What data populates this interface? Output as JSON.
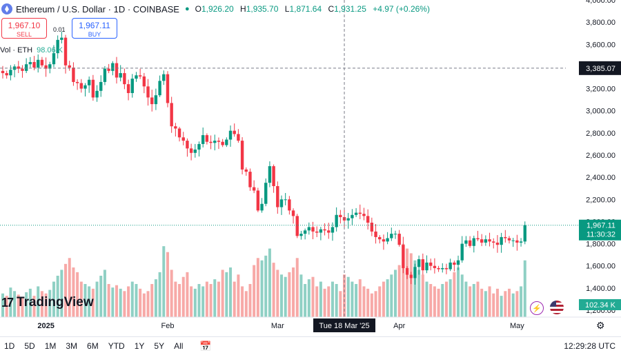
{
  "header": {
    "title": "Ethereum / U.S. Dollar · 1D · COINBASE",
    "open_label": "O",
    "open": "1,926.20",
    "high_label": "H",
    "high": "1,935.70",
    "low_label": "L",
    "low": "1,871.64",
    "close_label": "C",
    "close": "1,931.25",
    "change": "+4.97 (+0.26%)"
  },
  "trade": {
    "sell_price": "1,967.10",
    "sell_label": "SELL",
    "buy_price": "1,967.11",
    "buy_label": "BUY",
    "spread": "0.01"
  },
  "volume": {
    "label": "Vol · ETH",
    "value": "98.06 K"
  },
  "logo": {
    "text": "TradingView"
  },
  "colors": {
    "up": "#089981",
    "down": "#f23645",
    "vol_up": "#8fd0c4",
    "vol_down": "#f7a9a7",
    "crosshair": "#131722"
  },
  "chart_data": {
    "type": "candlestick",
    "title": "Ethereum / U.S. Dollar · 1D · COINBASE",
    "ylim": [
      1200,
      4000
    ],
    "y_ticks": [
      "4,000.00",
      "3,800.00",
      "3,600.00",
      "3,400.00",
      "3,200.00",
      "3,000.00",
      "2,800.00",
      "2,600.00",
      "2,400.00",
      "2,200.00",
      "2,000.00",
      "1,800.00",
      "1,600.00",
      "1,400.00",
      "1,200.00"
    ],
    "y_tick_values": [
      4000,
      3800,
      3600,
      3400,
      3200,
      3000,
      2800,
      2600,
      2400,
      2200,
      2000,
      1800,
      1600,
      1400,
      1200
    ],
    "x_ticks": [
      {
        "label": "2025",
        "index": 11
      },
      {
        "label": "Feb",
        "index": 42
      },
      {
        "label": "Mar",
        "index": 70
      },
      {
        "label": "Apr",
        "index": 101
      },
      {
        "label": "May",
        "index": 131
      }
    ],
    "crosshair": {
      "date_label": "Tue 18 Mar '25",
      "index": 87,
      "price_label": "3,385.07",
      "price": 3385.07
    },
    "last_price": {
      "label": "1,967.11",
      "value": 1967.11,
      "countdown": "11:30:32"
    },
    "volume_last_label": "102.34 K",
    "closes": [
      3340,
      3320,
      3370,
      3400,
      3380,
      3360,
      3420,
      3440,
      3390,
      3460,
      3410,
      3380,
      3420,
      3520,
      3640,
      3660,
      3410,
      3390,
      3260,
      3250,
      3200,
      3230,
      3280,
      3120,
      3180,
      3260,
      3380,
      3360,
      3430,
      3300,
      3340,
      3240,
      3160,
      3290,
      3320,
      3310,
      3220,
      3120,
      3060,
      3140,
      3270,
      3330,
      3070,
      2860,
      2840,
      2760,
      2730,
      2660,
      2620,
      2650,
      2700,
      2780,
      2720,
      2710,
      2730,
      2720,
      2690,
      2740,
      2820,
      2790,
      2730,
      2470,
      2450,
      2310,
      2280,
      2100,
      2160,
      2350,
      2500,
      2320,
      2130,
      2200,
      2200,
      2100,
      2050,
      1870,
      1890,
      1920,
      1950,
      1910,
      1900,
      1930,
      1920,
      1900,
      1950,
      2060,
      2040,
      2010,
      2030,
      2060,
      2080,
      2070,
      2050,
      1990,
      1910,
      1860,
      1840,
      1820,
      1850,
      1890,
      1890,
      1790,
      1580,
      1520,
      1490,
      1590,
      1660,
      1560,
      1630,
      1600,
      1580,
      1570,
      1580,
      1570,
      1630,
      1610,
      1650,
      1800,
      1830,
      1780,
      1850,
      1840,
      1810,
      1840,
      1820,
      1810,
      1790,
      1860,
      1850,
      1830,
      1830,
      1810,
      1820,
      1967
    ],
    "volumes": [
      20,
      18,
      25,
      22,
      19,
      17,
      21,
      24,
      18,
      26,
      22,
      20,
      23,
      30,
      35,
      40,
      45,
      50,
      42,
      38,
      30,
      28,
      26,
      24,
      30,
      35,
      40,
      28,
      25,
      27,
      24,
      22,
      26,
      30,
      28,
      24,
      20,
      22,
      28,
      32,
      38,
      60,
      55,
      40,
      30,
      28,
      34,
      38,
      26,
      24,
      28,
      26,
      30,
      28,
      32,
      30,
      40,
      38,
      42,
      30,
      36,
      26,
      22,
      28,
      44,
      50,
      48,
      52,
      58,
      46,
      40,
      36,
      34,
      38,
      42,
      50,
      36,
      28,
      32,
      34,
      26,
      30,
      24,
      26,
      30,
      28,
      22,
      36,
      34,
      30,
      28,
      32,
      26,
      24,
      20,
      22,
      26,
      30,
      32,
      36,
      40,
      44,
      62,
      58,
      54,
      48,
      40,
      36,
      30,
      28,
      26,
      24,
      28,
      30,
      32,
      38,
      42,
      36,
      30,
      26,
      28,
      30,
      24,
      22,
      26,
      20,
      24,
      18,
      22,
      24,
      20,
      22,
      26,
      48
    ]
  }
}
